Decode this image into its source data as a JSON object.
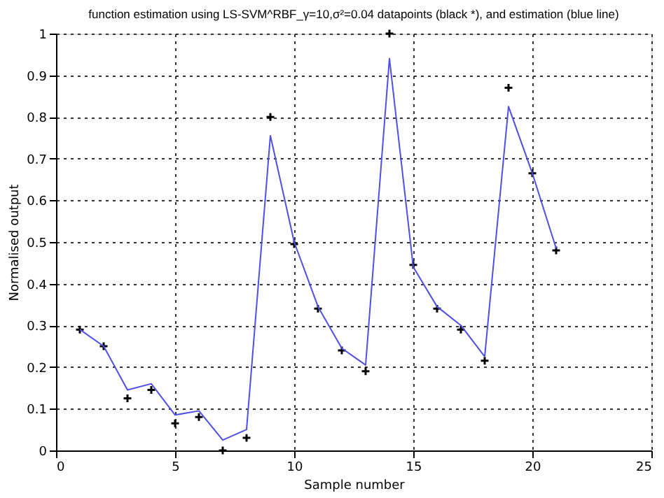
{
  "chart_data": {
    "type": "line",
    "title": "function estimation using  LS-SVM^RBF_γ=10,σ²=0.04  datapoints (black *), and estimation  (blue line)",
    "xlabel": "Sample number",
    "ylabel": "Normalised output",
    "x": [
      1,
      2,
      3,
      4,
      5,
      6,
      7,
      8,
      9,
      10,
      11,
      12,
      13,
      14,
      15,
      16,
      17,
      18,
      19,
      20,
      21
    ],
    "series": [
      {
        "type": "scatter",
        "marker": "cross",
        "color": "#000000",
        "values": [
          0.29,
          0.25,
          0.125,
          0.145,
          0.065,
          0.08,
          0.0,
          0.03,
          0.8,
          0.495,
          0.34,
          0.24,
          0.19,
          1.0,
          0.445,
          0.34,
          0.29,
          0.215,
          0.87,
          0.665,
          0.48
        ]
      },
      {
        "marker": "none",
        "line_style": "solid",
        "color": "#4f4fe8",
        "values": [
          0.29,
          0.25,
          0.145,
          0.16,
          0.085,
          0.095,
          0.025,
          0.05,
          0.755,
          0.5,
          0.345,
          0.245,
          0.205,
          0.94,
          0.44,
          0.345,
          0.3,
          0.225,
          0.825,
          0.665,
          0.485
        ]
      }
    ],
    "xlim": [
      0,
      25
    ],
    "xticks": [
      0,
      5,
      10,
      15,
      20,
      25
    ],
    "ylim": [
      0,
      1
    ],
    "yticks": [
      0,
      0.1,
      0.2,
      0.3,
      0.4,
      0.5,
      0.6,
      0.7,
      0.8,
      0.9,
      1
    ],
    "grid": true
  }
}
